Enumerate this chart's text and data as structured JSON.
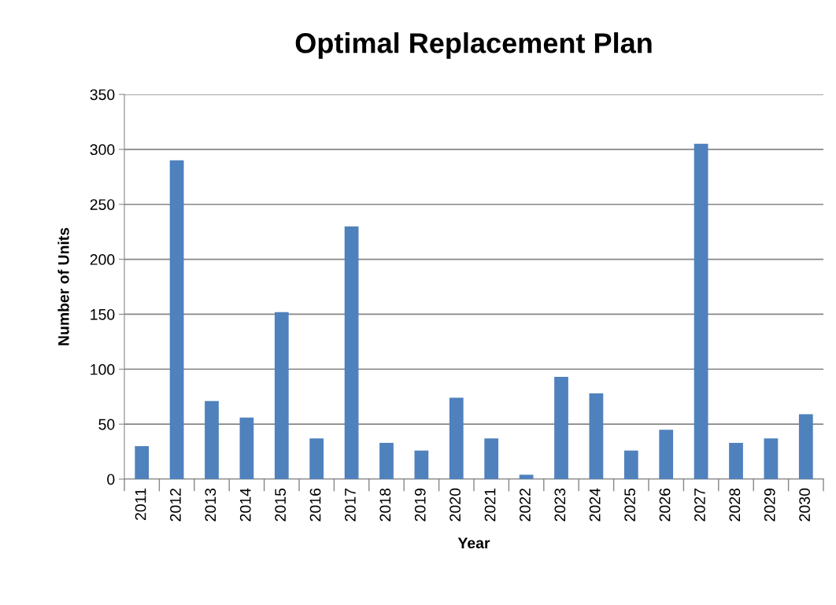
{
  "chart_data": {
    "type": "bar",
    "title": "Optimal Replacement Plan",
    "xlabel": "Year",
    "ylabel": "Number of Units",
    "categories": [
      "2011",
      "2012",
      "2013",
      "2014",
      "2015",
      "2016",
      "2017",
      "2018",
      "2019",
      "2020",
      "2021",
      "2022",
      "2023",
      "2024",
      "2025",
      "2026",
      "2027",
      "2028",
      "2029",
      "2030"
    ],
    "values": [
      30,
      290,
      71,
      56,
      152,
      37,
      230,
      33,
      26,
      74,
      37,
      4,
      93,
      78,
      26,
      45,
      305,
      33,
      37,
      59
    ],
    "color": "#4f81bd",
    "ylim": [
      0,
      350
    ],
    "yticks": [
      0,
      50,
      100,
      150,
      200,
      250,
      300,
      350
    ],
    "grid": "y",
    "legend": false
  }
}
